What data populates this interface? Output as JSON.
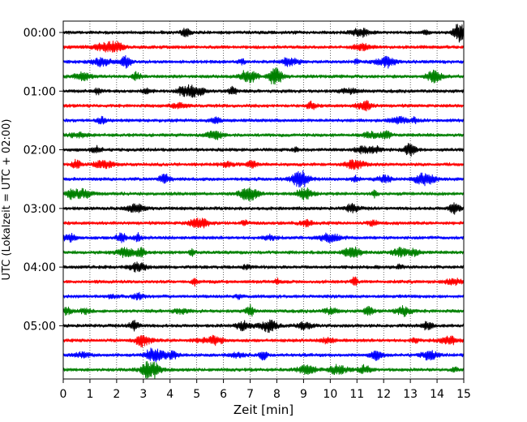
{
  "chart_data": {
    "type": "line",
    "title": "",
    "xlabel": "Zeit  [min]",
    "ylabel": "UTC (Lokalzeit = UTC + 02:00)",
    "xlim": [
      0,
      15
    ],
    "x_ticks": [
      "0",
      "1",
      "2",
      "3",
      "4",
      "5",
      "6",
      "7",
      "8",
      "9",
      "10",
      "11",
      "12",
      "13",
      "14",
      "15"
    ],
    "y_tick_labels": [
      "00:00",
      "01:00",
      "02:00",
      "03:00",
      "04:00",
      "05:00"
    ],
    "y_tick_rows": [
      0,
      4,
      8,
      12,
      16,
      20
    ],
    "rows": [
      "00:00",
      "00:15",
      "00:30",
      "00:45",
      "01:00",
      "01:15",
      "01:30",
      "01:45",
      "02:00",
      "02:15",
      "02:30",
      "02:45",
      "03:00",
      "03:15",
      "03:30",
      "03:45",
      "04:00",
      "04:15",
      "04:30",
      "04:45",
      "05:00",
      "05:15",
      "05:30",
      "05:45"
    ],
    "row_colors": [
      "#000000",
      "#ff0000",
      "#0000ff",
      "#008000"
    ],
    "grid": "vertical-dotted",
    "legend": "none"
  }
}
